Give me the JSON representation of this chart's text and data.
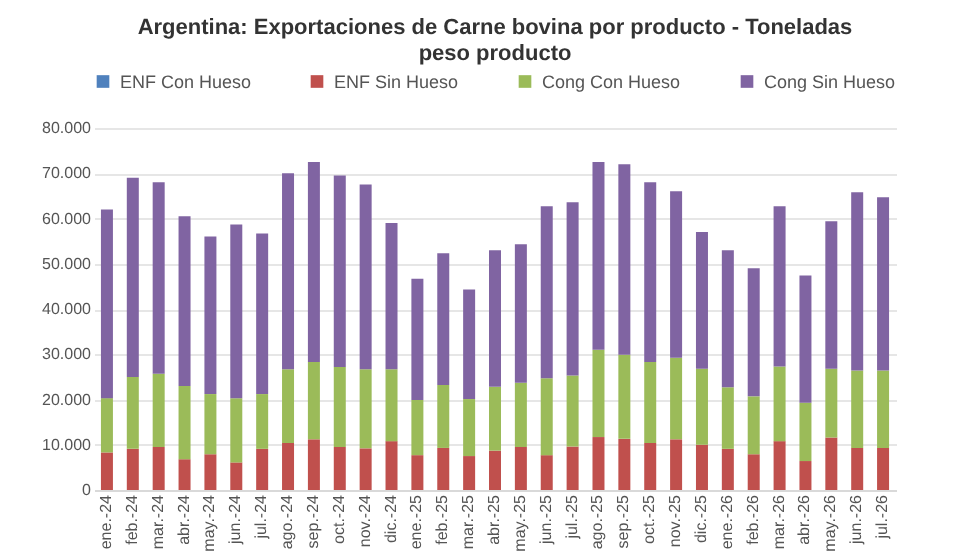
{
  "chart_data": {
    "type": "bar",
    "stacked": true,
    "title": "Argentina: Exportaciones de Carne bovina por producto - Toneladas peso producto",
    "categories": [
      "ene.-24",
      "feb.-24",
      "mar.-24",
      "abr.-24",
      "may.-24",
      "jun.-24",
      "jul.-24",
      "ago.-24",
      "sep.-24",
      "oct.-24",
      "nov.-24",
      "dic.-24",
      "ene.-25",
      "feb.-25",
      "mar.-25",
      "abr.-25",
      "may.-25",
      "jun.-25",
      "jul.-25",
      "ago.-25",
      "sep.-25",
      "oct.-25",
      "nov.-25",
      "dic.-25",
      "ene.-26",
      "feb.-26",
      "mar.-26",
      "abr.-26",
      "may.-26",
      "jun.-26",
      "jul.-26"
    ],
    "series": [
      {
        "name": "ENF Con Hueso",
        "color": "#4f81bd",
        "values": [
          0,
          0,
          0,
          0,
          0,
          0,
          0,
          0,
          0,
          0,
          0,
          0,
          0,
          0,
          0,
          0,
          0,
          0,
          0,
          0,
          0,
          0,
          0,
          0,
          0,
          0,
          0,
          0,
          0,
          0,
          0
        ]
      },
      {
        "name": "ENF Sin Hueso",
        "color": "#c0504d",
        "values": [
          8300,
          9100,
          9500,
          6800,
          7900,
          6100,
          9100,
          10400,
          11200,
          9500,
          9200,
          10800,
          7700,
          9300,
          7500,
          8700,
          9500,
          7700,
          9600,
          11700,
          11300,
          10400,
          11200,
          10000,
          9100,
          7900,
          10800,
          6400,
          11600,
          9300,
          9300
        ]
      },
      {
        "name": "Cong Con Hueso",
        "color": "#9bbb59",
        "values": [
          12000,
          15900,
          16200,
          16200,
          13300,
          14200,
          12100,
          16300,
          17100,
          17700,
          17500,
          15900,
          12200,
          13900,
          12600,
          14100,
          14200,
          17000,
          15700,
          19300,
          18600,
          17900,
          18000,
          16800,
          13600,
          12800,
          16500,
          12900,
          15200,
          17100,
          17100
        ]
      },
      {
        "name": "Cong Sin Hueso",
        "color": "#8064a2",
        "values": [
          41700,
          44000,
          42300,
          37500,
          34800,
          38400,
          35500,
          43300,
          44200,
          42300,
          40800,
          32300,
          26800,
          29100,
          24200,
          30200,
          30600,
          38000,
          38300,
          41500,
          42100,
          39700,
          36800,
          30200,
          30300,
          28300,
          35400,
          28100,
          32600,
          39400,
          38300
        ]
      }
    ],
    "ylim": [
      0,
      80000
    ],
    "yticks": [
      {
        "value": 0,
        "label": "0"
      },
      {
        "value": 10000,
        "label": "10.000"
      },
      {
        "value": 20000,
        "label": "20.000"
      },
      {
        "value": 30000,
        "label": "30.000"
      },
      {
        "value": 40000,
        "label": "40.000"
      },
      {
        "value": 50000,
        "label": "50.000"
      },
      {
        "value": 60000,
        "label": "60.000"
      },
      {
        "value": 70000,
        "label": "70.000"
      },
      {
        "value": 80000,
        "label": "80.000"
      }
    ],
    "grid": "y",
    "legend": "top"
  }
}
